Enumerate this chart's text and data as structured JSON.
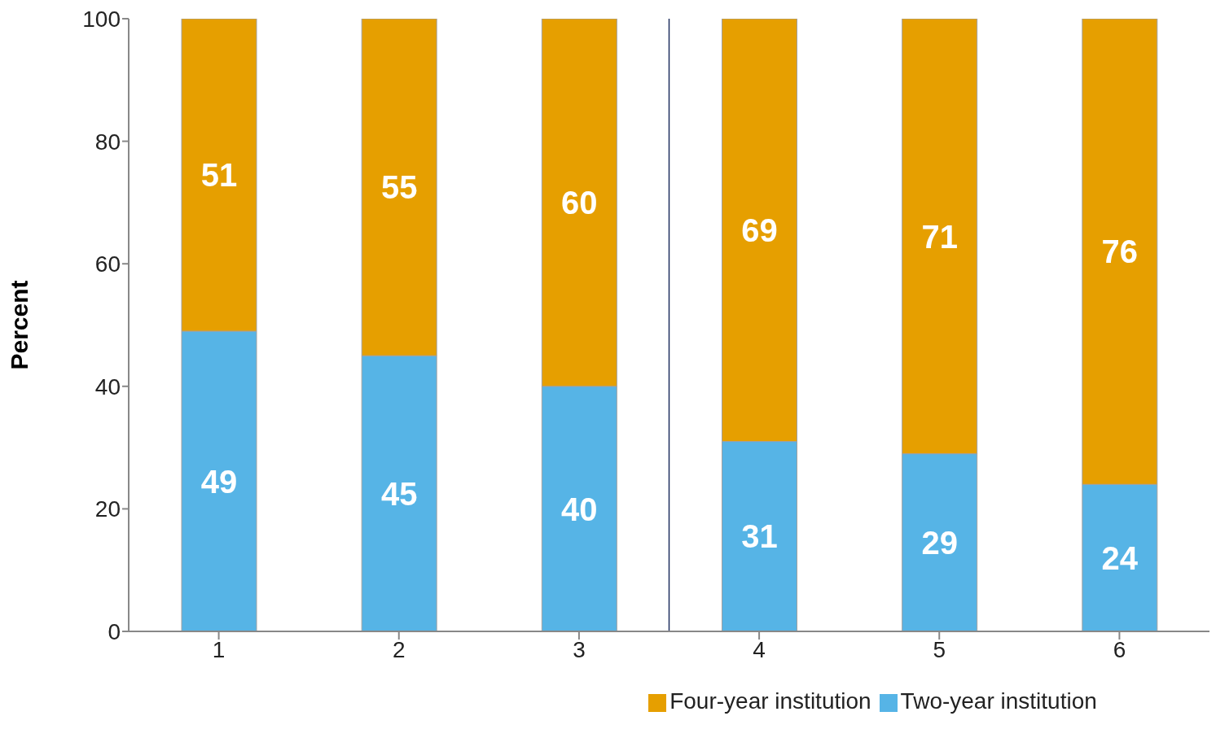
{
  "chart_data": {
    "type": "bar",
    "stacked": true,
    "ylabel": "Percent",
    "x": [
      1,
      2,
      3,
      4,
      5,
      6
    ],
    "xlim": [
      0.5,
      6.5
    ],
    "xticks": [
      1,
      2,
      3,
      4,
      5,
      6
    ],
    "series": [
      {
        "name": "Two-year institution",
        "color": "#56b4e6",
        "values": [
          49,
          45,
          40,
          31,
          29,
          24
        ]
      },
      {
        "name": "Four-year institution",
        "color": "#e69f00",
        "values": [
          51,
          55,
          60,
          69,
          71,
          76
        ]
      }
    ],
    "ylim": [
      0,
      100
    ],
    "yticks": [
      0,
      20,
      40,
      60,
      80,
      100
    ],
    "grid": false,
    "legend": "bottom",
    "data_labels": true,
    "ref_lines": [
      {
        "axis": "x",
        "value": 3.5,
        "color": "#1f2f5f"
      }
    ]
  }
}
